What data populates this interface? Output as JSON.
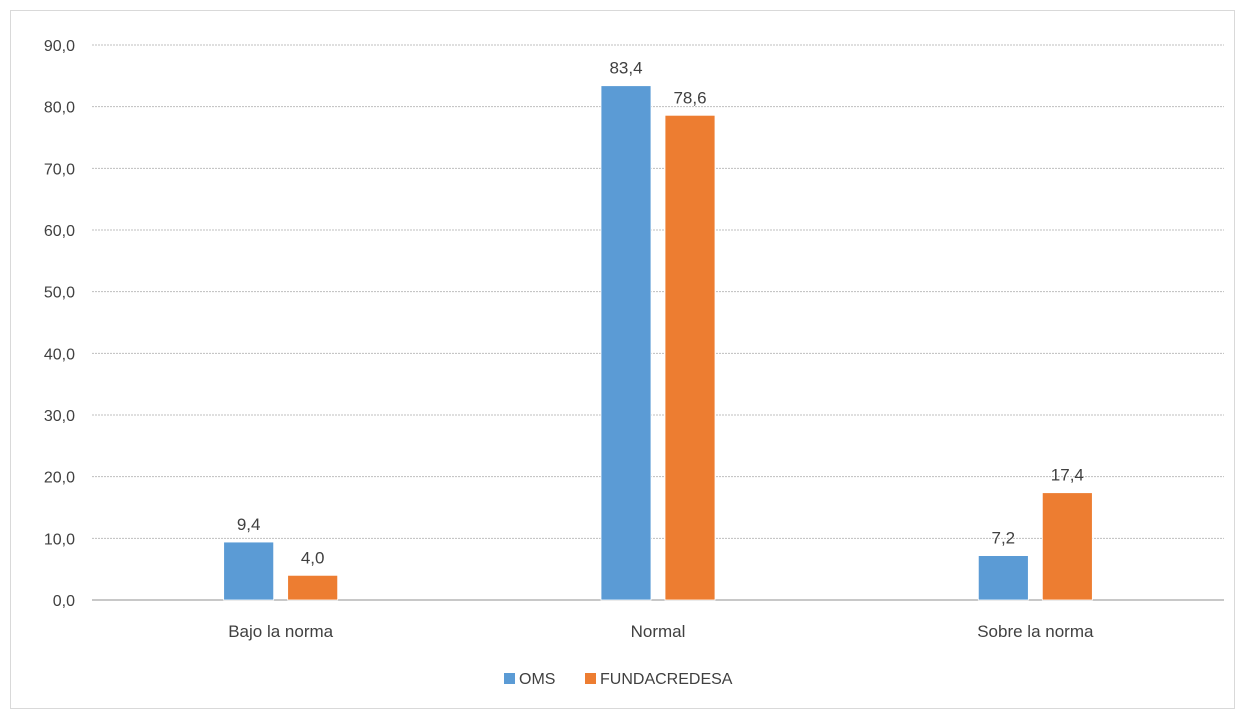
{
  "chart_data": {
    "type": "bar",
    "categories": [
      "Bajo la norma",
      "Normal",
      "Sobre la norma"
    ],
    "series": [
      {
        "name": "OMS",
        "values": [
          9.4,
          83.4,
          7.2
        ],
        "labels": [
          "9,4",
          "83,4",
          "7,2"
        ],
        "color": "#5b9bd5"
      },
      {
        "name": "FUNDACREDESA",
        "values": [
          4.0,
          78.6,
          17.4
        ],
        "labels": [
          "4,0",
          "78,6",
          "17,4"
        ],
        "color": "#ed7d31"
      }
    ],
    "ylim": [
      0,
      90
    ],
    "yticks": [
      0,
      10,
      20,
      30,
      40,
      50,
      60,
      70,
      80,
      90
    ],
    "ytick_labels": [
      "0,0",
      "10,0",
      "20,0",
      "30,0",
      "40,0",
      "50,0",
      "60,0",
      "70,0",
      "80,0",
      "90,0"
    ],
    "grid": true,
    "legend_position": "bottom",
    "gridline_color": "#bfbfbf",
    "axis_color": "#a6a6a6"
  }
}
